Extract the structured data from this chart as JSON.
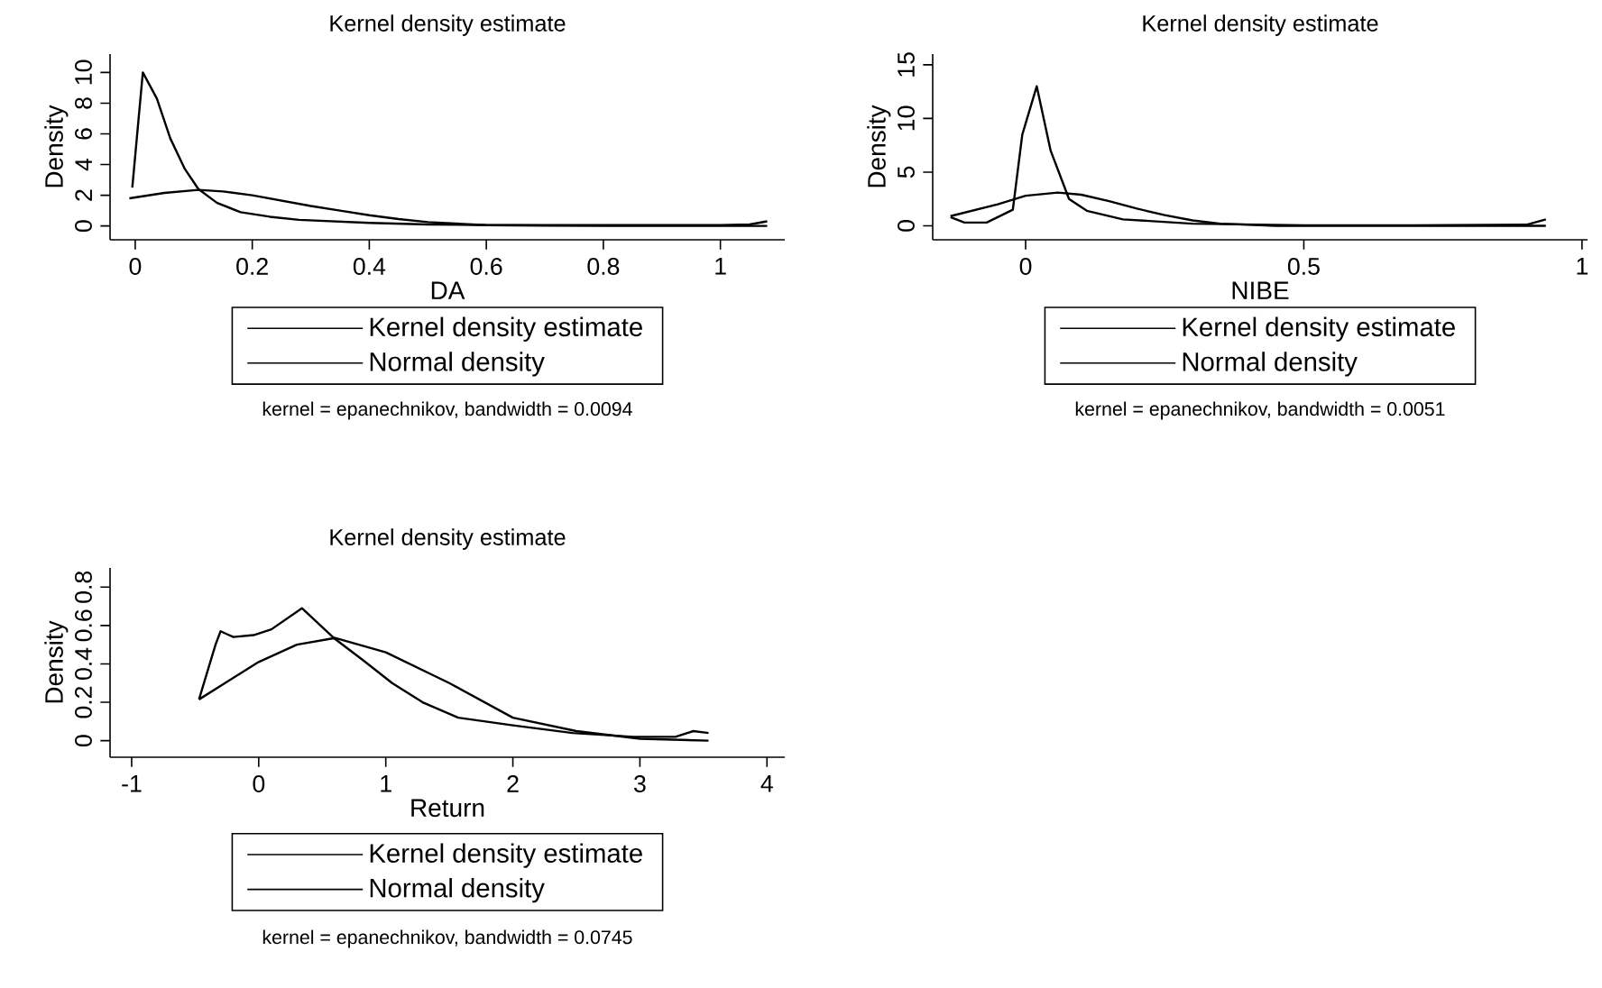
{
  "chart_data": [
    {
      "type": "line",
      "title": "Kernel density estimate",
      "xlabel": "DA",
      "ylabel": "Density",
      "xlim": [
        -0.043,
        1.11
      ],
      "ylim": [
        -0.9,
        11.2
      ],
      "xticks": [
        0,
        0.2,
        0.4,
        0.6,
        0.8,
        1
      ],
      "yticks": [
        0,
        2,
        4,
        6,
        8,
        10
      ],
      "legend": "bottom",
      "annotations": [
        "kernel = epanechnikov, bandwidth = 0.0094"
      ],
      "series": [
        {
          "name": "Kernel density estimate",
          "color": "#000000",
          "x": [
            -0.005,
            0.013,
            0.037,
            0.06,
            0.085,
            0.108,
            0.14,
            0.18,
            0.23,
            0.28,
            0.4,
            0.5,
            0.6,
            0.8,
            1.0,
            1.05,
            1.08
          ],
          "values": [
            2.5,
            10,
            8.3,
            5.7,
            3.7,
            2.4,
            1.5,
            0.9,
            0.6,
            0.4,
            0.2,
            0.1,
            0.05,
            0.05,
            0.05,
            0.1,
            0.3
          ]
        },
        {
          "name": "Normal density",
          "color": "#000000",
          "x": [
            -0.01,
            0.05,
            0.108,
            0.15,
            0.2,
            0.25,
            0.3,
            0.35,
            0.4,
            0.45,
            0.5,
            0.6,
            0.7,
            0.8,
            1.0,
            1.08
          ],
          "values": [
            1.8,
            2.15,
            2.35,
            2.25,
            2.0,
            1.65,
            1.3,
            1.0,
            0.7,
            0.45,
            0.25,
            0.05,
            0.02,
            0,
            0,
            0
          ]
        }
      ]
    },
    {
      "type": "line",
      "title": "Kernel density estimate",
      "xlabel": "NIBE",
      "ylabel": "Density",
      "xlim": [
        -0.167,
        1.01
      ],
      "ylim": [
        -1.3,
        16
      ],
      "xticks": [
        0,
        0.5,
        1
      ],
      "yticks": [
        0,
        5,
        10,
        15
      ],
      "legend": "bottom",
      "annotations": [
        "kernel = epanechnikov, bandwidth = 0.0051"
      ],
      "series": [
        {
          "name": "Kernel density estimate",
          "color": "#000000",
          "x": [
            -0.135,
            -0.11,
            -0.07,
            -0.023,
            -0.006,
            0.02,
            0.045,
            0.078,
            0.11,
            0.175,
            0.3,
            0.5,
            0.7,
            0.9,
            0.935
          ],
          "values": [
            0.8,
            0.3,
            0.3,
            1.5,
            8.5,
            13,
            7,
            2.5,
            1.4,
            0.6,
            0.2,
            0.05,
            0.05,
            0.1,
            0.6
          ]
        },
        {
          "name": "Normal density",
          "color": "#000000",
          "x": [
            -0.135,
            -0.05,
            0,
            0.058,
            0.1,
            0.15,
            0.2,
            0.25,
            0.3,
            0.35,
            0.45,
            0.6,
            0.935
          ],
          "values": [
            0.9,
            2.0,
            2.8,
            3.1,
            2.9,
            2.3,
            1.6,
            1.0,
            0.5,
            0.2,
            0,
            0,
            0
          ]
        }
      ]
    },
    {
      "type": "line",
      "title": "Kernel density estimate",
      "xlabel": "Return",
      "ylabel": "Density",
      "xlim": [
        -1.17,
        4.14
      ],
      "ylim": [
        -0.086,
        0.9
      ],
      "xticks": [
        -1,
        0,
        1,
        2,
        3,
        4
      ],
      "yticks": [
        0,
        0.2,
        0.4,
        0.6,
        0.8
      ],
      "legend": "bottom",
      "annotations": [
        "kernel = epanechnikov, bandwidth = 0.0745"
      ],
      "series": [
        {
          "name": "Kernel density estimate",
          "color": "#000000",
          "x": [
            -0.47,
            -0.34,
            -0.3,
            -0.2,
            -0.04,
            0.1,
            0.34,
            0.6,
            0.82,
            1.05,
            1.29,
            1.57,
            2.0,
            2.47,
            2.95,
            3.28,
            3.42,
            3.54
          ],
          "values": [
            0.215,
            0.5,
            0.57,
            0.54,
            0.55,
            0.58,
            0.69,
            0.53,
            0.42,
            0.3,
            0.2,
            0.12,
            0.08,
            0.04,
            0.02,
            0.02,
            0.05,
            0.04
          ]
        },
        {
          "name": "Normal density",
          "color": "#000000",
          "x": [
            -0.47,
            0,
            0.3,
            0.6,
            1.0,
            1.5,
            2.0,
            2.5,
            3.0,
            3.54
          ],
          "values": [
            0.215,
            0.41,
            0.5,
            0.535,
            0.46,
            0.3,
            0.12,
            0.05,
            0.01,
            0.0
          ]
        }
      ]
    }
  ]
}
